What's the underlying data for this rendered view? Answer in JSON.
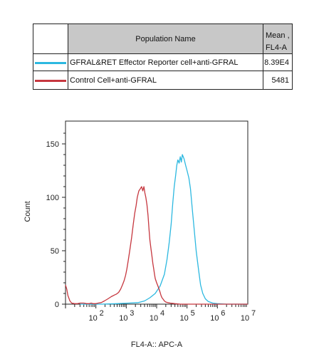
{
  "table": {
    "header_name": "Population Name",
    "header_mean": "Mean ,\nFL4-A",
    "rows": [
      {
        "name": "GFRAL&RET Effector Reporter cell+anti-GFRAL",
        "mean": "8.39E4",
        "color": "#2cb8e0"
      },
      {
        "name": "Control Cell+anti-GFRAL",
        "mean": "5481",
        "color": "#c6373f"
      }
    ]
  },
  "chart_data": {
    "type": "line",
    "xlabel": "FL4-A:: APC-A",
    "ylabel": "Count",
    "xscale": "log",
    "xlim": [
      10,
      10000000
    ],
    "ylim": [
      0,
      170
    ],
    "y_ticks": [
      0,
      50,
      100,
      150
    ],
    "y_tick_labels": [
      "0",
      "50",
      "100",
      "150"
    ],
    "x_ticks": [
      100,
      1000,
      10000,
      100000,
      1000000,
      10000000
    ],
    "x_tick_labels": [
      {
        "base": "10",
        "exp": "2"
      },
      {
        "base": "10",
        "exp": "3"
      },
      {
        "base": "10",
        "exp": "4"
      },
      {
        "base": "10",
        "exp": "5"
      },
      {
        "base": "10",
        "exp": "6"
      },
      {
        "base": "10",
        "exp": "7"
      }
    ],
    "series": [
      {
        "color": "#2cb8e0",
        "x": [
          30,
          60,
          150,
          500,
          1200,
          2500,
          4000,
          6000,
          9000,
          13000,
          18000,
          22000,
          26000,
          30000,
          34000,
          38000,
          42000,
          46000,
          50000,
          55000,
          60000,
          65000,
          70000,
          80000,
          90000,
          100000,
          115000,
          130000,
          150000,
          175000,
          200000,
          240000,
          280000,
          330000,
          400000,
          500000,
          700000,
          1000000,
          2000000,
          10000000
        ],
        "y": [
          0,
          0,
          0,
          0.5,
          1,
          1.5,
          3,
          6,
          10,
          17,
          28,
          42,
          58,
          75,
          95,
          110,
          120,
          130,
          135,
          132,
          138,
          133,
          140,
          136,
          130,
          125,
          118,
          108,
          88,
          68,
          50,
          32,
          18,
          10,
          5,
          2.5,
          1,
          0.5,
          0,
          0
        ]
      },
      {
        "color": "#c6373f",
        "x": [
          10,
          11,
          12,
          14,
          16,
          20,
          25,
          30,
          40,
          50,
          60,
          70,
          80,
          100,
          120,
          150,
          190,
          250,
          320,
          400,
          480,
          560,
          650,
          750,
          850,
          950,
          1050,
          1150,
          1300,
          1500,
          1700,
          1900,
          2100,
          2300,
          2600,
          2900,
          3200,
          3500,
          3800,
          4100,
          4400,
          4800,
          5200,
          5600,
          6000,
          6500,
          7000,
          7500,
          8000,
          8500,
          9000,
          10000,
          11000,
          12000,
          13000,
          14000,
          15000,
          16000,
          17000,
          18000,
          20000,
          23000,
          28000,
          40000,
          60000,
          10000000
        ],
        "y": [
          18,
          14,
          8,
          3,
          1,
          0.5,
          0.5,
          1,
          1,
          0.5,
          0.5,
          1,
          0.5,
          0.5,
          1,
          1.5,
          3,
          5,
          7,
          8.5,
          9.5,
          11,
          14,
          18,
          22,
          27,
          33,
          40,
          50,
          62,
          75,
          85,
          92,
          100,
          106,
          108,
          110,
          106,
          110,
          104,
          100,
          93,
          83,
          70,
          60,
          52,
          45,
          38,
          33,
          28,
          24,
          20,
          17,
          14,
          11,
          8,
          6,
          5,
          4,
          3,
          2,
          1.5,
          1,
          0.5,
          0,
          0
        ]
      }
    ]
  }
}
